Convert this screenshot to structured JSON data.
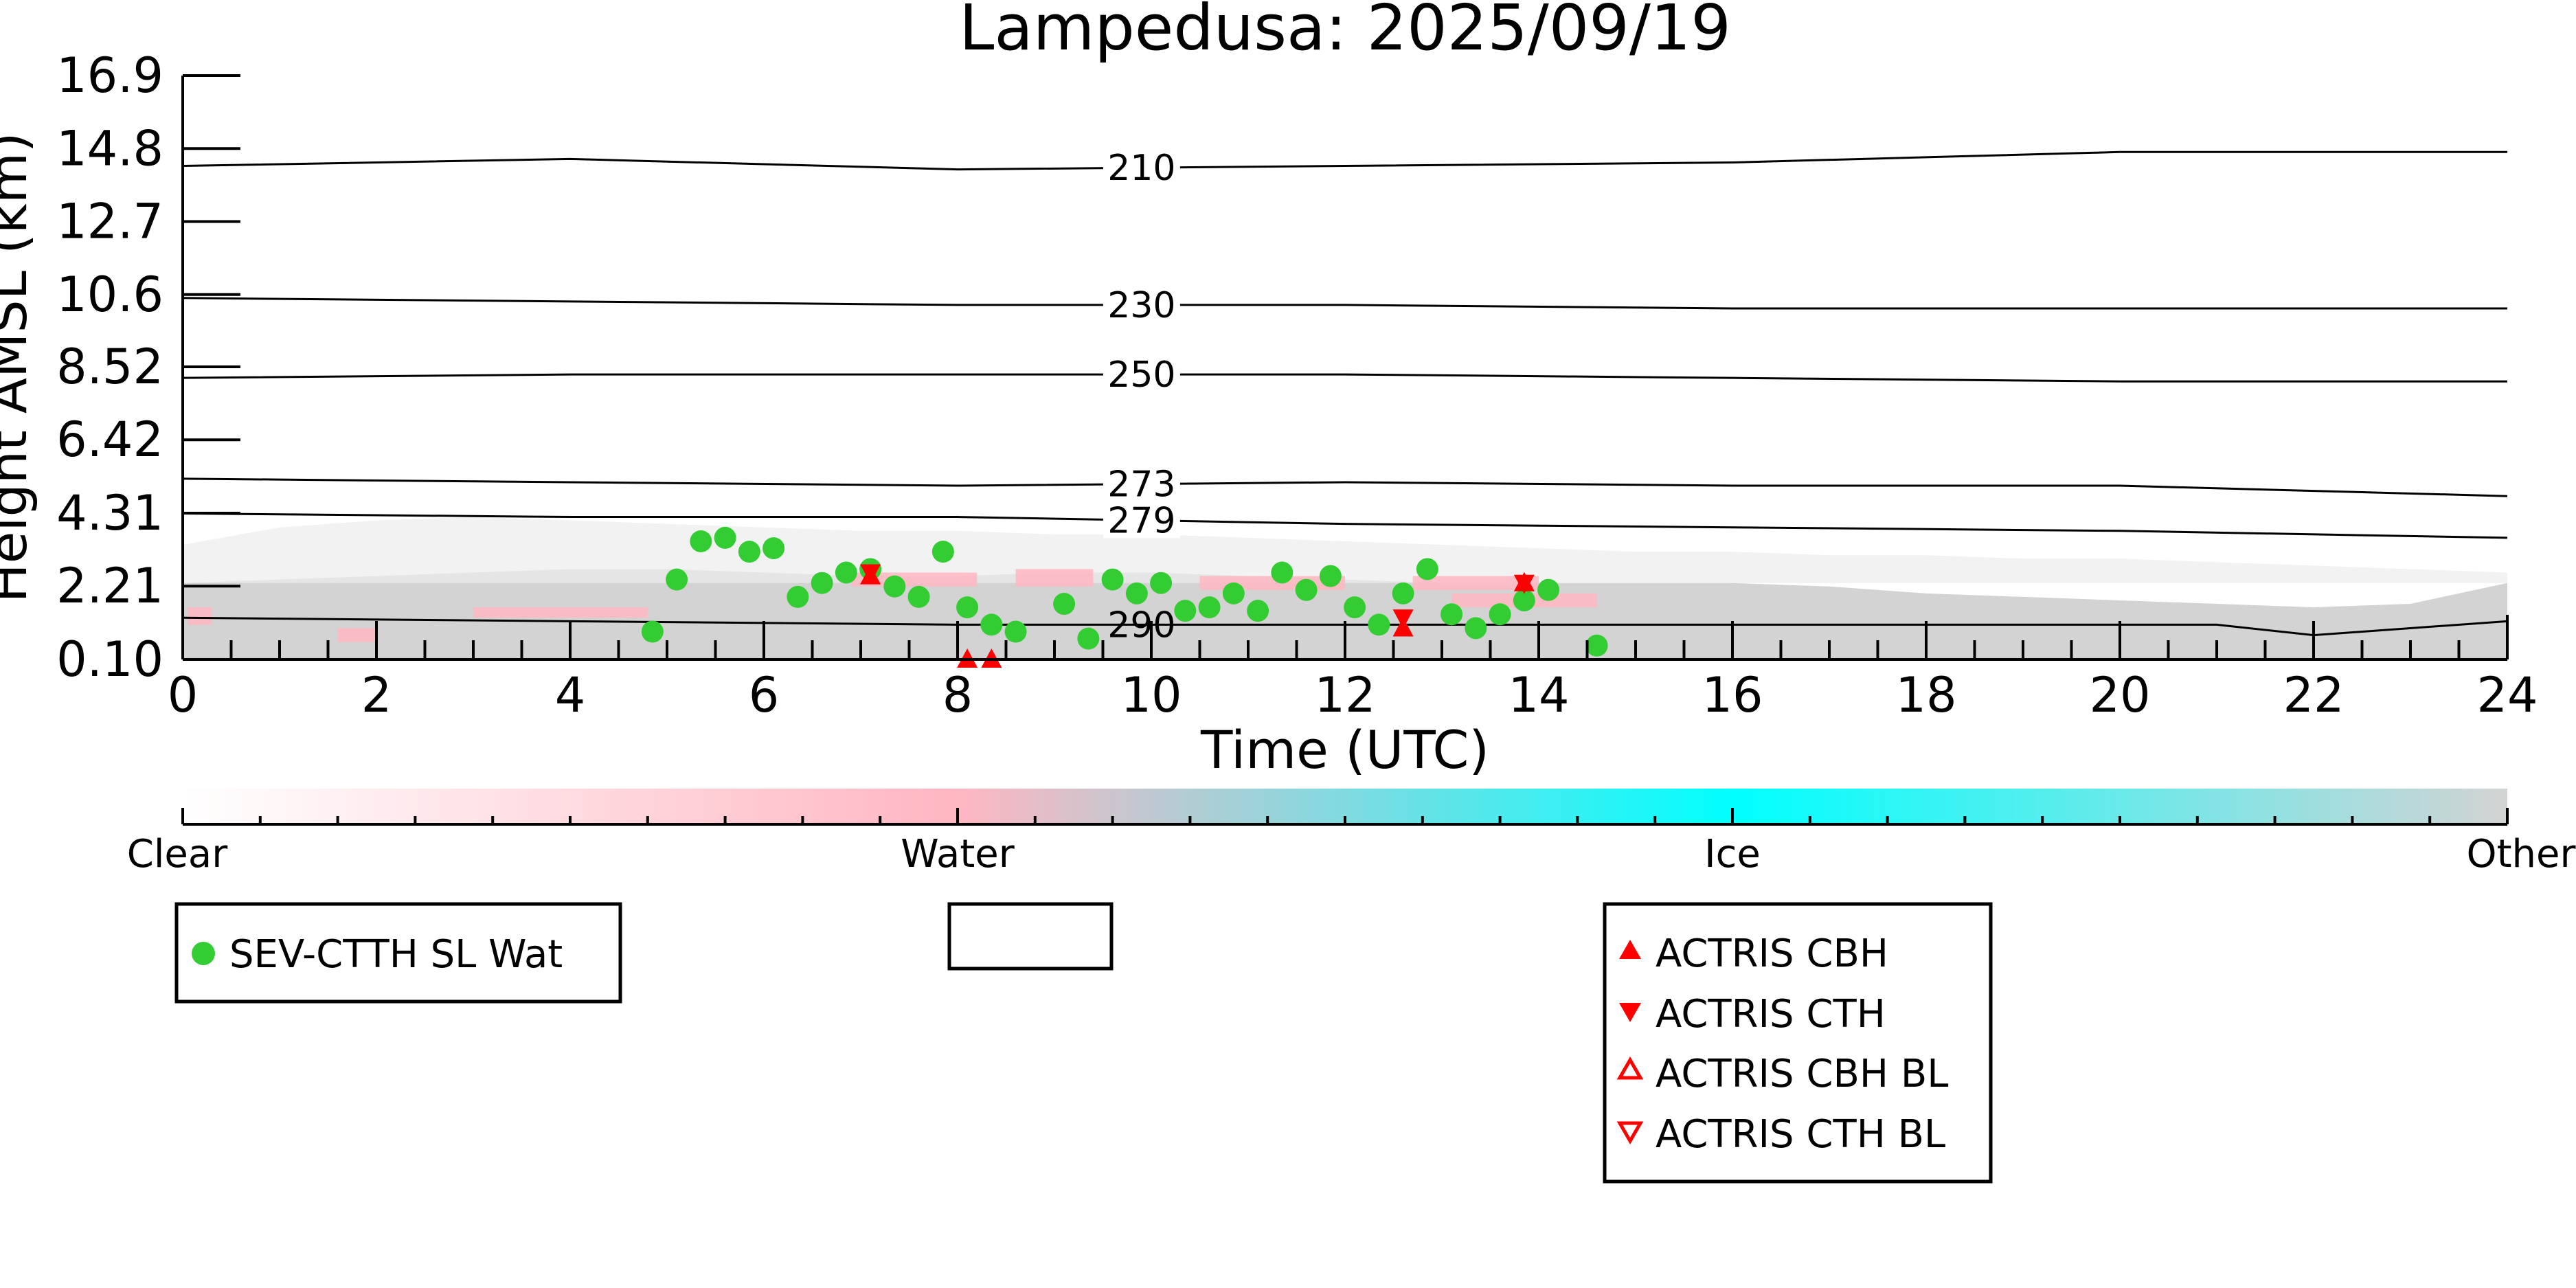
{
  "colors": {
    "clear": "#ffffff",
    "water": "#ffb6c1",
    "ice": "#00ffff",
    "other": "#d3d3d3",
    "marker_green": "#33cc33",
    "marker_red": "#ff0000"
  },
  "chart_data": {
    "type": "scatter",
    "title": "Lampedusa: 2025/09/19",
    "xlabel": "Time (UTC)",
    "ylabel": "Height AMSL (km)",
    "xlim": [
      0,
      24
    ],
    "ylim": [
      0.1,
      16.9
    ],
    "x_ticks": [
      0,
      2,
      4,
      6,
      8,
      10,
      12,
      14,
      16,
      18,
      20,
      22,
      24
    ],
    "y_ticks": [
      "0.10",
      "2.21",
      "4.31",
      "6.42",
      "8.52",
      "10.6",
      "12.7",
      "14.8",
      "16.9"
    ],
    "y_tick_values": [
      0.1,
      2.21,
      4.31,
      6.42,
      8.52,
      10.6,
      12.7,
      14.8,
      16.9
    ],
    "background": "cloud classification (Clear / Water / Ice / Other) mostly Other below ~3 km with Water patches",
    "contours": [
      {
        "label": "210",
        "x": [
          0,
          4,
          8,
          12,
          16,
          20,
          24
        ],
        "y": [
          14.3,
          14.5,
          14.2,
          14.3,
          14.4,
          14.7,
          14.7
        ],
        "label_x": 9.9
      },
      {
        "label": "230",
        "x": [
          0,
          4,
          8,
          12,
          16,
          20,
          24
        ],
        "y": [
          10.5,
          10.4,
          10.3,
          10.3,
          10.2,
          10.2,
          10.2
        ],
        "label_x": 9.9
      },
      {
        "label": "250",
        "x": [
          0,
          4,
          8,
          12,
          16,
          20,
          24
        ],
        "y": [
          8.2,
          8.3,
          8.3,
          8.3,
          8.2,
          8.1,
          8.1
        ],
        "label_x": 9.9
      },
      {
        "label": "273",
        "x": [
          0,
          4,
          8,
          12,
          16,
          20,
          24
        ],
        "y": [
          5.3,
          5.2,
          5.1,
          5.2,
          5.1,
          5.1,
          4.8
        ],
        "label_x": 9.9
      },
      {
        "label": "279",
        "x": [
          0,
          4,
          8,
          12,
          16,
          20,
          24
        ],
        "y": [
          4.3,
          4.2,
          4.2,
          4.0,
          3.9,
          3.8,
          3.6
        ],
        "label_x": 9.9
      },
      {
        "label": "290",
        "x": [
          0,
          4,
          8,
          12,
          16,
          18,
          21,
          22,
          24
        ],
        "y": [
          1.3,
          1.2,
          1.1,
          1.1,
          1.1,
          1.1,
          1.1,
          0.8,
          1.2
        ],
        "label_x": 9.9
      }
    ],
    "colorbar": {
      "labels": [
        "Clear",
        "Water",
        "Ice",
        "Other"
      ],
      "positions": [
        0,
        0.333,
        0.667,
        1.0
      ]
    },
    "series": [
      {
        "name": "SEV-CTTH SL Wat",
        "marker": "circle",
        "color": "#33cc33",
        "x": [
          4.85,
          5.1,
          5.35,
          5.6,
          5.85,
          6.1,
          6.35,
          6.6,
          6.85,
          7.1,
          7.35,
          7.6,
          7.85,
          8.1,
          8.35,
          8.6,
          9.1,
          9.35,
          9.6,
          9.85,
          10.1,
          10.35,
          10.6,
          10.85,
          11.1,
          11.35,
          11.6,
          11.85,
          12.1,
          12.35,
          12.6,
          12.85,
          13.1,
          13.35,
          13.6,
          13.85,
          14.1,
          14.6
        ],
        "y": [
          0.9,
          2.4,
          3.5,
          3.6,
          3.2,
          3.3,
          1.9,
          2.3,
          2.6,
          2.7,
          2.2,
          1.9,
          3.2,
          1.6,
          1.1,
          0.9,
          1.7,
          0.7,
          2.4,
          2.0,
          2.3,
          1.5,
          1.6,
          2.0,
          1.5,
          2.6,
          2.1,
          2.5,
          1.6,
          1.1,
          2.0,
          2.7,
          1.4,
          1.0,
          1.4,
          1.8,
          2.1,
          0.5
        ]
      },
      {
        "name": "ACTRIS CBH",
        "marker": "triangle-up",
        "color": "#ff0000",
        "x": [
          7.1,
          12.6,
          13.85,
          8.1,
          8.35
        ],
        "y": [
          2.5,
          1.0,
          2.3,
          0.1,
          0.1
        ]
      },
      {
        "name": "ACTRIS CTH",
        "marker": "triangle-down",
        "color": "#ff0000",
        "x": [
          7.1,
          12.6,
          13.85
        ],
        "y": [
          2.6,
          1.3,
          2.3
        ]
      },
      {
        "name": "ACTRIS CBH BL",
        "marker": "triangle-up-open",
        "color": "#ff0000",
        "x": [],
        "y": []
      },
      {
        "name": "ACTRIS CTH BL",
        "marker": "triangle-down-open",
        "color": "#ff0000",
        "x": [],
        "y": []
      }
    ],
    "legends": {
      "left": [
        "SEV-CTTH SL Wat"
      ],
      "middle": [],
      "right": [
        "ACTRIS CBH",
        "ACTRIS CTH",
        "ACTRIS CBH BL",
        "ACTRIS CTH BL"
      ]
    }
  }
}
